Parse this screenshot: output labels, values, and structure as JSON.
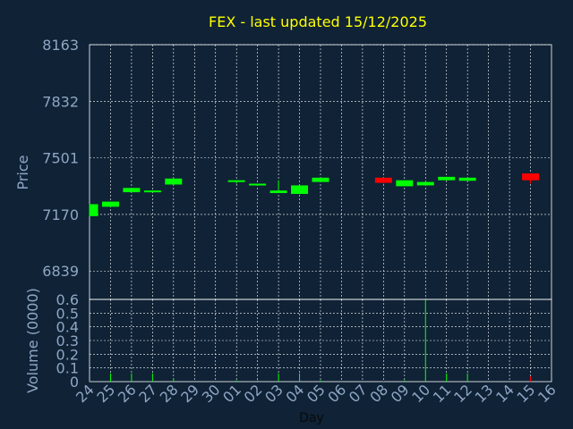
{
  "chart_data": {
    "type": "candlestick",
    "title": "FEX - last updated 15/12/2025",
    "xlabel": "Day",
    "price_label": "Price",
    "volume_label": "Volume (0000)",
    "x_ticks": [
      "24",
      "25",
      "26",
      "27",
      "28",
      "29",
      "30",
      "01",
      "02",
      "03",
      "04",
      "05",
      "06",
      "07",
      "08",
      "09",
      "10",
      "11",
      "12",
      "13",
      "14",
      "15",
      "16"
    ],
    "price_ticks": [
      "8163",
      "7832",
      "7501",
      "7170",
      "6839"
    ],
    "price_range": [
      6673,
      8163
    ],
    "volume_ticks": [
      "0",
      "0.1",
      "0.2",
      "0.3",
      "0.4",
      "0.5",
      "0.6"
    ],
    "volume_range": [
      0,
      0.6
    ],
    "colors": {
      "background": "#0f2236",
      "grid": "#ffffff",
      "axis_text": "#8fa7c4",
      "title": "#ffff00",
      "up": "#00ff00",
      "down": "#ff0000"
    },
    "candles": [
      {
        "day": "24",
        "open": 7160,
        "close": 7230,
        "high": 7230,
        "low": 7160
      },
      {
        "day": "25",
        "open": 7215,
        "close": 7245,
        "high": 7245,
        "low": 7215
      },
      {
        "day": "26",
        "open": 7300,
        "close": 7325,
        "high": 7325,
        "low": 7300
      },
      {
        "day": "27",
        "open": 7302,
        "close": 7310,
        "high": 7310,
        "low": 7302
      },
      {
        "day": "28",
        "open": 7345,
        "close": 7380,
        "high": 7380,
        "low": 7345
      },
      {
        "day": "01",
        "open": 7360,
        "close": 7370,
        "high": 7370,
        "low": 7350
      },
      {
        "day": "02",
        "open": 7340,
        "close": 7350,
        "high": 7350,
        "low": 7340
      },
      {
        "day": "03",
        "open": 7295,
        "close": 7310,
        "high": 7370,
        "low": 7295
      },
      {
        "day": "04",
        "open": 7290,
        "close": 7340,
        "high": 7340,
        "low": 7290
      },
      {
        "day": "05",
        "open": 7360,
        "close": 7385,
        "high": 7385,
        "low": 7360
      },
      {
        "day": "08",
        "open": 7385,
        "close": 7355,
        "high": 7385,
        "low": 7350
      },
      {
        "day": "09",
        "open": 7335,
        "close": 7370,
        "high": 7370,
        "low": 7335
      },
      {
        "day": "10",
        "open": 7340,
        "close": 7360,
        "high": 7360,
        "low": 7340
      },
      {
        "day": "11",
        "open": 7370,
        "close": 7390,
        "high": 7390,
        "low": 7370
      },
      {
        "day": "12",
        "open": 7367,
        "close": 7385,
        "high": 7385,
        "low": 7367
      },
      {
        "day": "15",
        "open": 7410,
        "close": 7370,
        "high": 7410,
        "low": 7350
      }
    ],
    "volumes": [
      {
        "day": "24",
        "value": 0.005
      },
      {
        "day": "25",
        "value": 0.06
      },
      {
        "day": "26",
        "value": 0.06
      },
      {
        "day": "27",
        "value": 0.06
      },
      {
        "day": "28",
        "value": 0.02
      },
      {
        "day": "01",
        "value": 0.01
      },
      {
        "day": "02",
        "value": 0.01
      },
      {
        "day": "03",
        "value": 0.06
      },
      {
        "day": "04",
        "value": 0.06
      },
      {
        "day": "05",
        "value": 0.01
      },
      {
        "day": "08",
        "value": 0.01
      },
      {
        "day": "09",
        "value": 0.01
      },
      {
        "day": "10",
        "value": 0.6
      },
      {
        "day": "11",
        "value": 0.06
      },
      {
        "day": "12",
        "value": 0.06
      },
      {
        "day": "15",
        "value": 0.04
      }
    ]
  }
}
